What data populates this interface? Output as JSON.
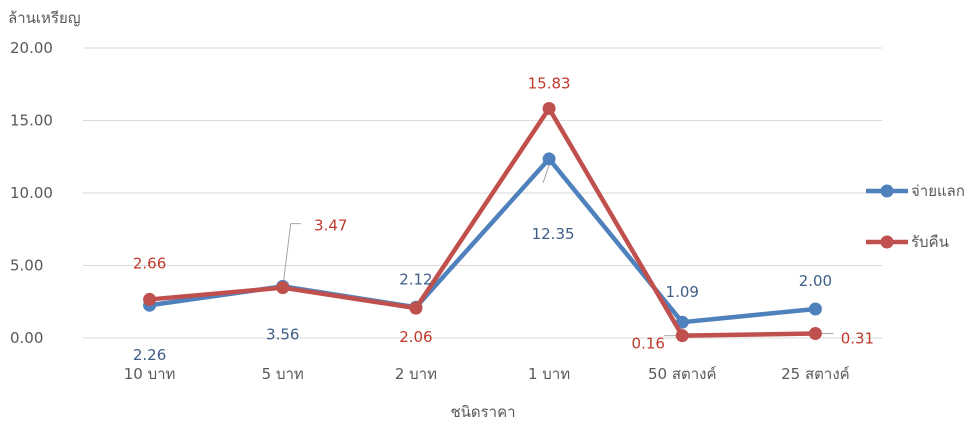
{
  "chart_data": {
    "type": "line",
    "ylabel": "ล้านเหรียญ",
    "xlabel": "ชนิดราคา",
    "categories": [
      "10 บาท",
      "5 บาท",
      "2 บาท",
      "1 บาท",
      "50 สตางค์",
      "25 สตางค์"
    ],
    "ylim": [
      0,
      20
    ],
    "yticks": [
      "0.00",
      "5.00",
      "10.00",
      "15.00",
      "20.00"
    ],
    "grid": true,
    "legend": "right",
    "series": [
      {
        "name": "จ่ายแลก",
        "color": "#4F81BD",
        "values": [
          2.26,
          3.56,
          2.12,
          12.35,
          1.09,
          2.0
        ],
        "labels": [
          "2.26",
          "3.56",
          "2.12",
          "12.35",
          "1.09",
          "2.00"
        ]
      },
      {
        "name": "รับคืน",
        "color": "#C0504D",
        "values": [
          2.66,
          3.47,
          2.06,
          15.83,
          0.16,
          0.31
        ],
        "labels": [
          "2.66",
          "3.47",
          "2.06",
          "15.83",
          "0.16",
          "0.31"
        ]
      }
    ]
  },
  "colors": {
    "blue_text": "#3E5E87",
    "red_text": "#C0392B",
    "grid": "#D9D9D9"
  }
}
